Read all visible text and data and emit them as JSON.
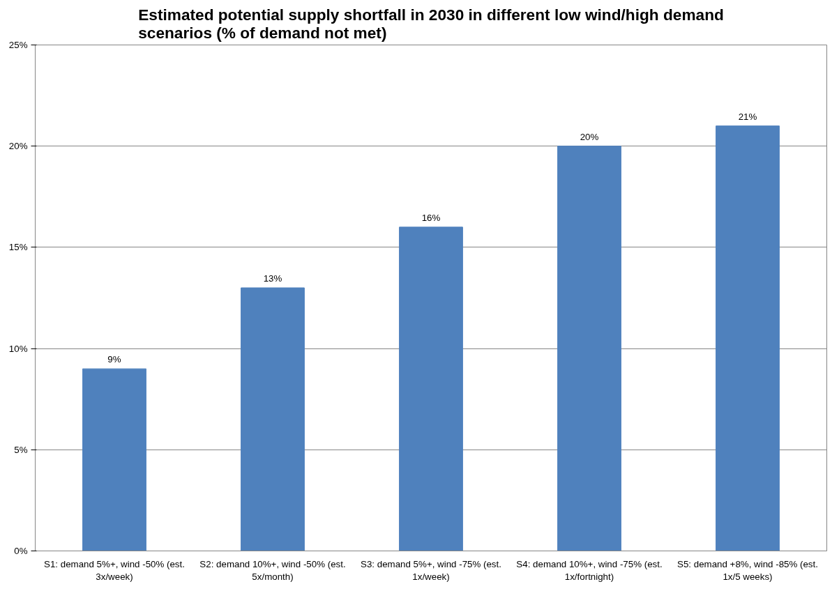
{
  "chart_data": {
    "type": "bar",
    "title": "Estimated potential supply shortfall in 2030 in different low wind/high demand scenarios (% of demand not met)",
    "categories": [
      "S1: demand 5%+, wind -50% (est. 3x/week)",
      "S2: demand 10%+, wind -50% (est. 5x/month)",
      "S3: demand 5%+, wind -75% (est. 1x/week)",
      "S4: demand 10%+, wind -75% (est. 1x/fortnight)",
      "S5: demand +8%, wind -85% (est. 1x/5 weeks)"
    ],
    "values": [
      9,
      13,
      16,
      20,
      21
    ],
    "value_labels": [
      "9%",
      "13%",
      "16%",
      "20%",
      "21%"
    ],
    "color": "#4f81bd",
    "ylim": [
      0,
      25
    ],
    "yticks": [
      {
        "value": 0,
        "label": "0%"
      },
      {
        "value": 5,
        "label": "5%"
      },
      {
        "value": 10,
        "label": "10%"
      },
      {
        "value": 15,
        "label": "15%"
      },
      {
        "value": 20,
        "label": "20%"
      },
      {
        "value": 25,
        "label": "25%"
      }
    ],
    "grid": "y"
  }
}
